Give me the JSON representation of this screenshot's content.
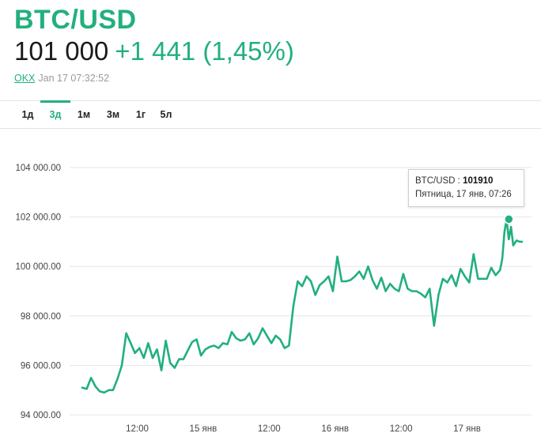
{
  "header": {
    "title": "BTC/USD",
    "price": "101 000",
    "change": "+1 441 (1,45%)",
    "exchange": "OKX",
    "timestamp": "Jan 17 07:32:52"
  },
  "tabs": [
    {
      "label": "1д",
      "active": false
    },
    {
      "label": "3д",
      "active": true
    },
    {
      "label": "1м",
      "active": false
    },
    {
      "label": "3м",
      "active": false
    },
    {
      "label": "1г",
      "active": false
    },
    {
      "label": "5л",
      "active": false
    }
  ],
  "tooltip": {
    "series": "BTC/USD",
    "separator": " : ",
    "value": "101910",
    "date": "Пятница, 17 янв, 07:26"
  },
  "colors": {
    "accent": "#22b07d",
    "grid": "#e6e6e6"
  },
  "chart_data": {
    "type": "line",
    "ylim": [
      94000,
      104000
    ],
    "y_ticks": [
      94000,
      96000,
      98000,
      100000,
      102000,
      104000
    ],
    "y_tick_labels": [
      "94 000.00",
      "96 000.00",
      "98 000.00",
      "100 000.00",
      "102 000.00",
      "104 000.00"
    ],
    "x_tick_labels": [
      "12:00",
      "15 янв",
      "12:00",
      "16 янв",
      "12:00",
      "17 янв"
    ],
    "x_tick_hours": [
      12,
      24,
      36,
      48,
      60,
      72
    ],
    "xlim_hours": [
      2,
      82
    ],
    "grid": "horizontal",
    "series": [
      {
        "x_hours": [
          2.0,
          2.8,
          3.6,
          4.4,
          5.2,
          6.0,
          6.8,
          7.6,
          8.4,
          9.2,
          10.0,
          10.8,
          11.6,
          12.4,
          13.2,
          14.0,
          14.8,
          15.6,
          16.4,
          17.2,
          18.0,
          18.8,
          19.6,
          20.4,
          21.2,
          22.0,
          22.8,
          23.6,
          24.4,
          25.2,
          26.0,
          26.8,
          27.6,
          28.4,
          29.2,
          30.0,
          30.8,
          31.6,
          32.4,
          33.2,
          34.0,
          34.8,
          35.6,
          36.4,
          37.2,
          38.0,
          38.8,
          39.6,
          40.4,
          41.2,
          42.0,
          42.8,
          43.6,
          44.4,
          45.2,
          46.0,
          46.8,
          47.6,
          48.4,
          49.2,
          50.0,
          50.8,
          51.6,
          52.4,
          53.2,
          54.0,
          54.8,
          55.6,
          56.4,
          57.2,
          58.0,
          58.8,
          59.6,
          60.4,
          61.2,
          62.0,
          62.8,
          63.6,
          64.4,
          65.2,
          66.0,
          66.8,
          67.6,
          68.4,
          69.2,
          70.0,
          70.8,
          71.6,
          72.4,
          73.2,
          74.0,
          74.8,
          75.6,
          76.4,
          77.2,
          78.0,
          78.4,
          78.8,
          79.2,
          79.6,
          80.0,
          80.4,
          81.0,
          81.6,
          82.0
        ],
        "values": [
          95100,
          95050,
          95500,
          95150,
          94950,
          94900,
          95000,
          95000,
          95450,
          96000,
          97300,
          96900,
          96500,
          96700,
          96300,
          96900,
          96300,
          96650,
          95800,
          97000,
          96100,
          95900,
          96250,
          96250,
          96600,
          96950,
          97050,
          96400,
          96650,
          96750,
          96800,
          96700,
          96900,
          96850,
          97350,
          97100,
          97000,
          97050,
          97300,
          96850,
          97100,
          97500,
          97200,
          96900,
          97200,
          97050,
          96700,
          96800,
          98400,
          99400,
          99200,
          99600,
          99400,
          98850,
          99250,
          99400,
          99600,
          99000,
          100400,
          99400,
          99400,
          99450,
          99600,
          99800,
          99500,
          100000,
          99450,
          99100,
          99550,
          99000,
          99300,
          99100,
          99000,
          99700,
          99100,
          99000,
          99000,
          98900,
          98750,
          99100,
          97600,
          98850,
          99500,
          99350,
          99650,
          99200,
          99900,
          99600,
          99350,
          100500,
          99500,
          99500,
          99500,
          99950,
          99650,
          99850,
          100300,
          101400,
          101910,
          101100,
          101600,
          100850,
          101050,
          101000,
          101000
        ]
      }
    ],
    "highlight_point": {
      "x_hours": 79.6,
      "value": 101910
    }
  }
}
